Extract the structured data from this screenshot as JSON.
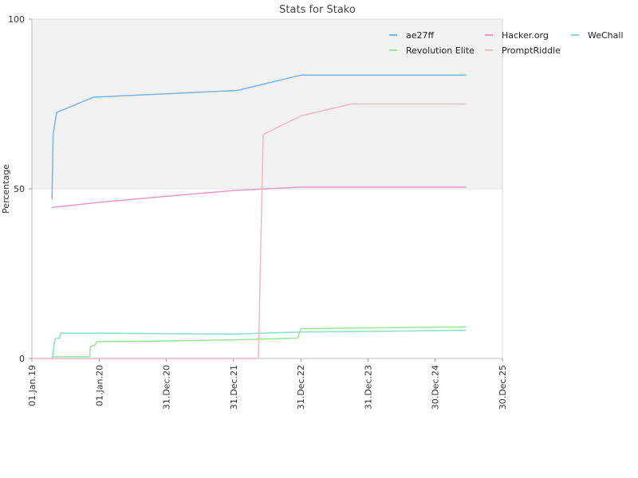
{
  "chart_data": {
    "type": "line",
    "title": "Stats for Stako",
    "ylabel": "Percentage",
    "xlabel": "",
    "ylim": [
      0,
      100
    ],
    "y_ticks": [
      "0",
      "50",
      "100"
    ],
    "x_range": [
      "2019-01-01",
      "2025-12-30"
    ],
    "x_ticks": [
      {
        "label": "01.Jan.19",
        "date": "2019-01-01"
      },
      {
        "label": "01.Jan.20",
        "date": "2020-01-01"
      },
      {
        "label": "31.Dec.20",
        "date": "2020-12-31"
      },
      {
        "label": "31.Dec.21",
        "date": "2021-12-31"
      },
      {
        "label": "31.Dec.22",
        "date": "2022-12-31"
      },
      {
        "label": "31.Dec.23",
        "date": "2023-12-31"
      },
      {
        "label": "30.Dec.24",
        "date": "2024-12-30"
      },
      {
        "label": "30.Dec.25",
        "date": "2025-12-30"
      }
    ],
    "background_bands": [
      {
        "from": 50,
        "to": 100,
        "color": "#f2f2f2"
      },
      {
        "from": 0,
        "to": 50,
        "color": "#ffffff"
      }
    ],
    "legend_position": "top-right",
    "series": [
      {
        "name": "ae27ff",
        "color": "#7ab4ea",
        "points": [
          [
            "2019-04-20",
            47
          ],
          [
            "2019-04-22",
            52
          ],
          [
            "2019-04-26",
            66
          ],
          [
            "2019-05-05",
            69
          ],
          [
            "2019-05-15",
            72.5
          ],
          [
            "2019-12-01",
            77
          ],
          [
            "2020-12-31",
            78
          ],
          [
            "2022-01-20",
            79
          ],
          [
            "2023-01-01",
            83.5
          ],
          [
            "2025-06-15",
            83.5
          ]
        ]
      },
      {
        "name": "Hacker.org",
        "color": "#e898c8",
        "points": [
          [
            "2019-04-20",
            44.5
          ],
          [
            "2020-01-01",
            46
          ],
          [
            "2020-12-31",
            47.8
          ],
          [
            "2021-12-31",
            49.5
          ],
          [
            "2023-01-01",
            50.5
          ],
          [
            "2025-06-15",
            50.5
          ]
        ]
      },
      {
        "name": "WeChall",
        "color": "#88e0c8",
        "points": [
          [
            "2019-04-20",
            0
          ],
          [
            "2019-04-25",
            1
          ],
          [
            "2019-05-05",
            5.5
          ],
          [
            "2019-05-15",
            6
          ],
          [
            "2019-06-01",
            6
          ],
          [
            "2019-06-05",
            7.5
          ],
          [
            "2020-01-01",
            7.5
          ],
          [
            "2020-12-31",
            7.3
          ],
          [
            "2022-01-01",
            7.2
          ],
          [
            "2023-01-01",
            7.8
          ],
          [
            "2024-01-01",
            8
          ],
          [
            "2024-12-30",
            8.2
          ],
          [
            "2025-06-15",
            8.3
          ]
        ]
      },
      {
        "name": "Revolution Elite",
        "color": "#98e898",
        "points": [
          [
            "2019-04-20",
            0.5
          ],
          [
            "2019-11-10",
            0.5
          ],
          [
            "2019-11-15",
            3.5
          ],
          [
            "2019-12-10",
            4
          ],
          [
            "2019-12-20",
            5
          ],
          [
            "2020-06-01",
            5
          ],
          [
            "2021-12-31",
            5.5
          ],
          [
            "2022-12-15",
            6
          ],
          [
            "2023-01-01",
            8.8
          ],
          [
            "2025-06-15",
            9.3
          ]
        ]
      },
      {
        "name": "PromptRiddle",
        "color": "#f4b8c4",
        "points": [
          [
            "2019-01-01",
            0
          ],
          [
            "2022-05-15",
            0
          ],
          [
            "2022-06-10",
            66
          ],
          [
            "2023-01-01",
            71.5
          ],
          [
            "2023-10-01",
            75
          ],
          [
            "2025-06-15",
            75
          ]
        ]
      }
    ]
  }
}
